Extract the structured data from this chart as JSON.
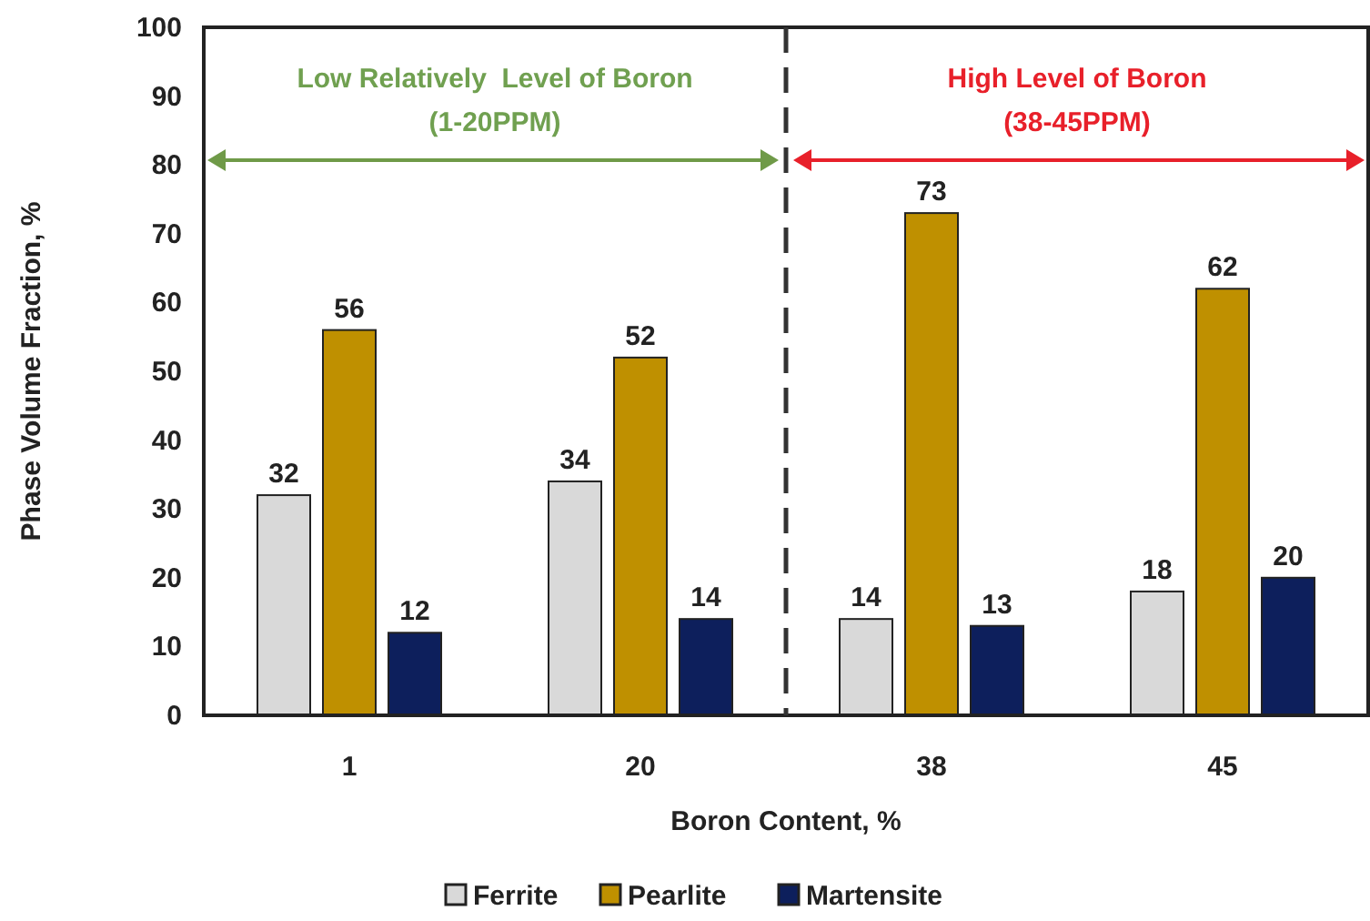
{
  "chart_data": {
    "type": "bar",
    "xlabel": "Boron Content, %",
    "ylabel": "Phase Volume Fraction, %",
    "categories": [
      "1",
      "20",
      "38",
      "45"
    ],
    "series": [
      {
        "name": "Ferrite",
        "color": "#d9d9d9",
        "values": [
          32,
          34,
          14,
          18
        ]
      },
      {
        "name": "Pearlite",
        "color": "#bf9000",
        "values": [
          56,
          52,
          73,
          62
        ]
      },
      {
        "name": "Martensite",
        "color": "#0d1f5c",
        "values": [
          12,
          14,
          13,
          20
        ]
      }
    ],
    "ylim": [
      0,
      100
    ],
    "yticks": [
      0,
      10,
      20,
      30,
      40,
      50,
      60,
      70,
      80,
      90,
      100
    ],
    "data_labels": true,
    "legend": "bottom",
    "annotations": [
      "Low Relatively  Level of Boron",
      "(1-20PPM)",
      "High Level of Boron",
      "(38-45PPM)"
    ]
  }
}
